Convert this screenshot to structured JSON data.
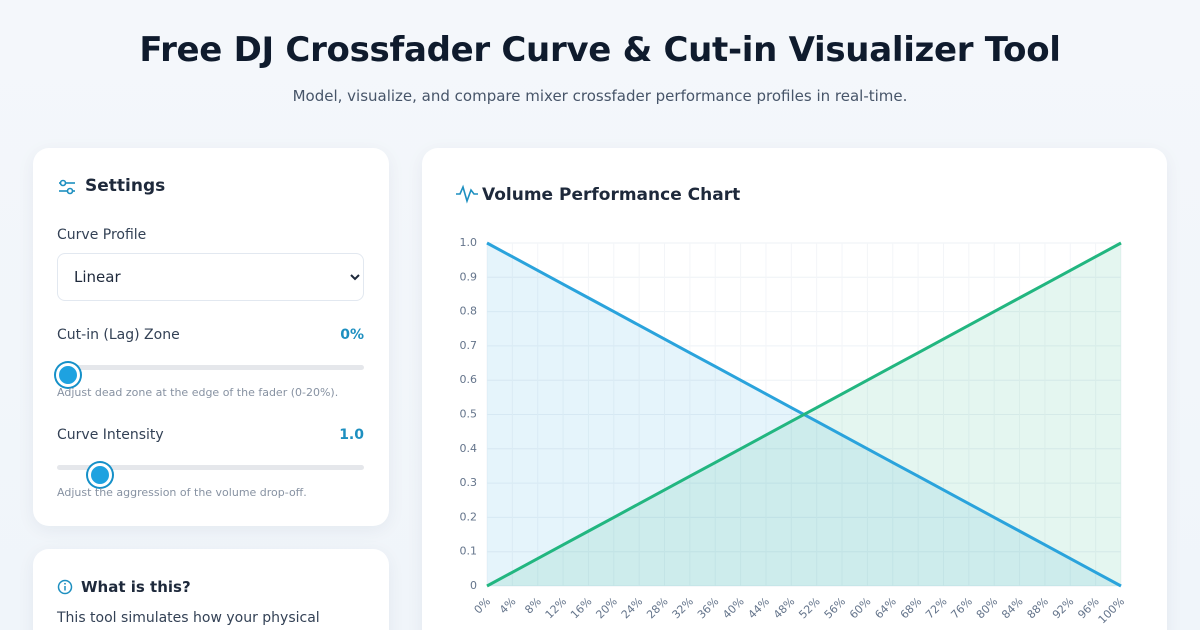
{
  "header": {
    "title": "Free DJ Crossfader Curve & Cut-in Visualizer Tool",
    "subtitle": "Model, visualize, and compare mixer crossfader performance profiles in real-time."
  },
  "settings": {
    "title": "Settings",
    "profile_label": "Curve Profile",
    "profile_value": "Linear",
    "cutin_label": "Cut-in (Lag) Zone",
    "cutin_value": "0%",
    "cutin_hint": "Adjust dead zone at the edge of the fader (0-20%).",
    "intensity_label": "Curve Intensity",
    "intensity_value": "1.0",
    "intensity_hint": "Adjust the aggression of the volume drop-off."
  },
  "info": {
    "title": "What is this?",
    "text": "This tool simulates how your physical"
  },
  "chart_data": {
    "type": "line",
    "title": "Volume Performance Chart",
    "categories": [
      "0%",
      "4%",
      "8%",
      "12%",
      "16%",
      "20%",
      "24%",
      "28%",
      "32%",
      "36%",
      "40%",
      "44%",
      "48%",
      "52%",
      "56%",
      "60%",
      "64%",
      "68%",
      "72%",
      "76%",
      "80%",
      "84%",
      "88%",
      "92%",
      "96%",
      "100%"
    ],
    "series": [
      {
        "color": "#2aa3dc",
        "values": [
          1,
          0.96,
          0.92,
          0.88,
          0.84,
          0.8,
          0.76,
          0.72,
          0.68,
          0.64,
          0.6,
          0.56,
          0.52,
          0.48,
          0.44,
          0.4,
          0.36,
          0.32,
          0.28,
          0.24,
          0.2,
          0.16,
          0.12,
          0.08,
          0.04,
          0
        ]
      },
      {
        "color": "#22b680",
        "values": [
          0,
          0.04,
          0.08,
          0.12,
          0.16,
          0.2,
          0.24,
          0.28,
          0.32,
          0.36,
          0.4,
          0.44,
          0.48,
          0.52,
          0.56,
          0.6,
          0.64,
          0.68,
          0.72,
          0.76,
          0.8,
          0.84,
          0.88,
          0.92,
          0.96,
          1
        ]
      }
    ],
    "ylim": [
      0,
      1
    ],
    "yticks": [
      0,
      0.1,
      0.2,
      0.3,
      0.4,
      0.5,
      0.6,
      0.7,
      0.8,
      0.9,
      {
        "value": 1,
        "label": "1.0"
      }
    ],
    "grid": true,
    "area": true
  }
}
